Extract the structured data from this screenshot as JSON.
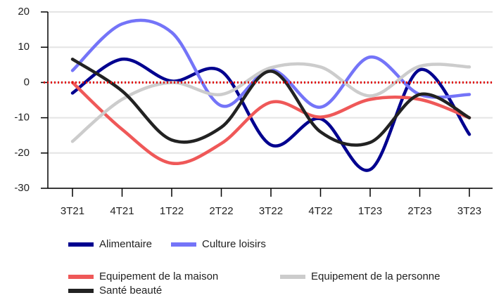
{
  "chart_data": {
    "type": "line",
    "categories": [
      "3T21",
      "4T21",
      "1T22",
      "2T22",
      "3T22",
      "4T22",
      "1T23",
      "2T23",
      "3T23"
    ],
    "series": [
      {
        "name": "Alimentaire",
        "color": "#00008f",
        "values": [
          -3,
          6.6,
          0.4,
          3.2,
          -17.7,
          -10.3,
          -24.7,
          3.6,
          -14.7
        ]
      },
      {
        "name": "Culture loisirs",
        "color": "#7474f8",
        "values": [
          3.4,
          16.6,
          14.2,
          -6.6,
          3.6,
          -7,
          7.2,
          -3.4,
          -3.4
        ]
      },
      {
        "name": "Equipement de la maison",
        "color": "#ef5858",
        "values": [
          0,
          -13.3,
          -22.9,
          -17.3,
          -5.6,
          -9.8,
          -4.8,
          -4.8,
          -10
        ]
      },
      {
        "name": "Equipement de la personne",
        "color": "#cccccc",
        "values": [
          -16.7,
          -4.8,
          0,
          -3.4,
          4.2,
          4.4,
          -3.8,
          4.6,
          4.4
        ]
      },
      {
        "name": "Santé beauté",
        "color": "#222222",
        "values": [
          6.6,
          -2.4,
          -16.3,
          -12.7,
          3.2,
          -14,
          -17,
          -3.4,
          -10
        ]
      }
    ],
    "ylim": [
      -30,
      20
    ],
    "yticks": [
      -30,
      -20,
      -10,
      0,
      10,
      20
    ],
    "grid": true,
    "reference_line": {
      "y": 0,
      "color": "#e00000",
      "style": "dotted"
    }
  }
}
